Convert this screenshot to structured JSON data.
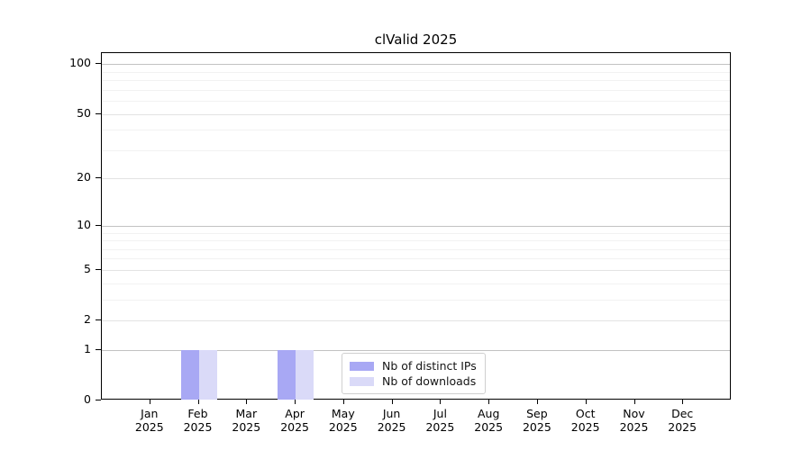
{
  "title": "clValid 2025",
  "chart_data": {
    "type": "bar",
    "title": "clValid 2025",
    "categories": [
      "Jan 2025",
      "Feb 2025",
      "Mar 2025",
      "Apr 2025",
      "May 2025",
      "Jun 2025",
      "Jul 2025",
      "Aug 2025",
      "Sep 2025",
      "Oct 2025",
      "Nov 2025",
      "Dec 2025"
    ],
    "series": [
      {
        "name": "Nb of distinct IPs",
        "color": "#a8a8f4",
        "values": [
          0,
          1,
          0,
          1,
          0,
          0,
          0,
          0,
          0,
          0,
          0,
          0
        ]
      },
      {
        "name": "Nb of downloads",
        "color": "#dadaf8",
        "values": [
          0,
          1,
          0,
          1,
          0,
          0,
          0,
          0,
          0,
          0,
          0,
          0
        ]
      }
    ],
    "xlabel": "",
    "ylabel": "",
    "y_axis": {
      "scale": "log1p",
      "ticks": [
        0,
        1,
        2,
        5,
        10,
        20,
        50,
        100
      ],
      "minor_gridlines": [
        3,
        4,
        6,
        7,
        8,
        9,
        30,
        40,
        60,
        70,
        80,
        90
      ],
      "max": 116.5
    },
    "grid": true,
    "legend_position": "lower center"
  }
}
